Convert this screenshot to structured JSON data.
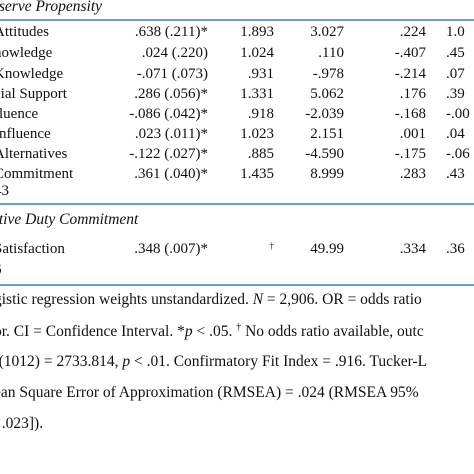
{
  "section1": {
    "title": "eserve Propensity",
    "rows": [
      {
        "name": "Attitudes",
        "b": ".638 (.211)*",
        "or": "1.893",
        "lo": "3.027",
        "hi": ".224",
        "x": "1.0"
      },
      {
        "name": "nowledge",
        "b": ".024 (.220)",
        "or": "1.024",
        "lo": ".110",
        "hi": "-.407",
        "x": ".45"
      },
      {
        "name": "Knowledge",
        "b": "-.071 (.073)",
        "or": ".931",
        "lo": "-.978",
        "hi": "-.214",
        "x": ".07"
      },
      {
        "name": "cial Support",
        "b": ".286 (.056)*",
        "or": "1.331",
        "lo": "5.062",
        "hi": ".176",
        "x": ".39"
      },
      {
        "name": "fluence",
        "b": "-.086 (.042)*",
        "or": ".918",
        "lo": "-2.039",
        "hi": "-.168",
        "x": "-.00"
      },
      {
        "name": "Influence",
        "b": ".023 (.011)*",
        "or": "1.023",
        "lo": "2.151",
        "hi": ".001",
        "x": ".04"
      },
      {
        "name": "Alternatives",
        "b": "-.122 (.027)*",
        "or": ".885",
        "lo": "-4.590",
        "hi": "-.175",
        "x": "-.06"
      },
      {
        "name": "Commitment",
        "b": ".361 (.040)*",
        "or": "1.435",
        "lo": "8.999",
        "hi": ".283",
        "x": ".43"
      }
    ],
    "n_line": "43"
  },
  "section2": {
    "title": "ctive Duty Commitment",
    "rows": [
      {
        "name": "Satisfaction",
        "b": ".348 (.007)*",
        "or": "†",
        "lo": "49.99",
        "hi": ".334",
        "x": ".36"
      }
    ],
    "n_line": "6"
  },
  "notes": {
    "line1_a": "gistic regression weights unstandardized.  ",
    "line1_n": "N",
    "line1_b": " = 2,906.  OR = odds ratio",
    "line2_a": "or. CI = Confidence Interval.  *",
    "line2_p": "p",
    "line2_b": " < .05. ",
    "line2_dagger": "†",
    "line2_c": " No odds ratio available, outc",
    "line3_a": "²(1012) = 2733.814, ",
    "line3_p": "p",
    "line3_b": " < .01. Confirmatory Fit Index = .916.  Tucker-L",
    "line4": "ean Square Error of Approximation (RMSEA) = .024 (RMSEA 95%",
    "line5": ", .023])."
  }
}
